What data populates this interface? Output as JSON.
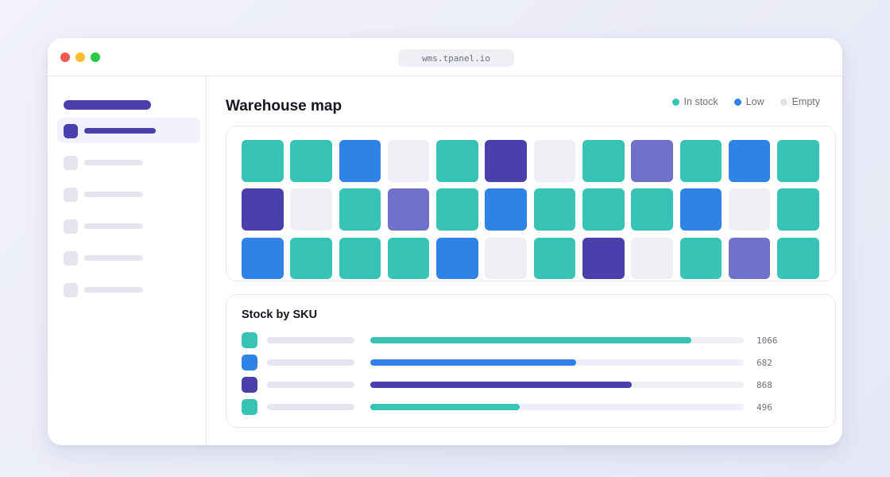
{
  "browser": {
    "url": "wms.tpanel.io"
  },
  "sidebar": {
    "items": [
      {
        "name": "sidebar-item-1",
        "active": true
      },
      {
        "name": "sidebar-item-2",
        "active": false
      },
      {
        "name": "sidebar-item-3",
        "active": false
      },
      {
        "name": "sidebar-item-4",
        "active": false
      },
      {
        "name": "sidebar-item-5",
        "active": false
      },
      {
        "name": "sidebar-item-6",
        "active": false
      }
    ]
  },
  "main": {
    "title": "Warehouse map"
  },
  "legend": [
    {
      "label": "In stock",
      "color": "#37c3b6"
    },
    {
      "label": "Low",
      "color": "#3083e6"
    },
    {
      "label": "Empty",
      "color": "#e0e2ea"
    }
  ],
  "colors": {
    "in_stock": "#37c3b6",
    "low": "#3083e6",
    "reserved": "#4b3fae",
    "partial": "#6f72c8",
    "empty": "#eef0f5",
    "accent": "#4b3fae"
  },
  "map": {
    "rows": [
      [
        "in_stock",
        "in_stock",
        "low",
        "empty",
        "in_stock",
        "reserved",
        "empty",
        "in_stock",
        "partial",
        "in_stock",
        "low",
        "in_stock"
      ],
      [
        "reserved",
        "empty",
        "in_stock",
        "partial",
        "in_stock",
        "low",
        "in_stock",
        "in_stock",
        "in_stock",
        "low",
        "empty",
        "in_stock"
      ],
      [
        "low",
        "in_stock",
        "in_stock",
        "in_stock",
        "low",
        "empty",
        "in_stock",
        "reserved",
        "empty",
        "in_stock",
        "partial",
        "in_stock"
      ]
    ]
  },
  "sku": {
    "title": "Stock by SKU",
    "max": 1234,
    "rows": [
      {
        "value": "1066",
        "fraction": 0.86,
        "color": "#37c3b6"
      },
      {
        "value": "682",
        "fraction": 0.55,
        "color": "#3083e6"
      },
      {
        "value": "868",
        "fraction": 0.7,
        "color": "#4b3fae"
      },
      {
        "value": "496",
        "fraction": 0.4,
        "color": "#37c3b6"
      }
    ]
  }
}
